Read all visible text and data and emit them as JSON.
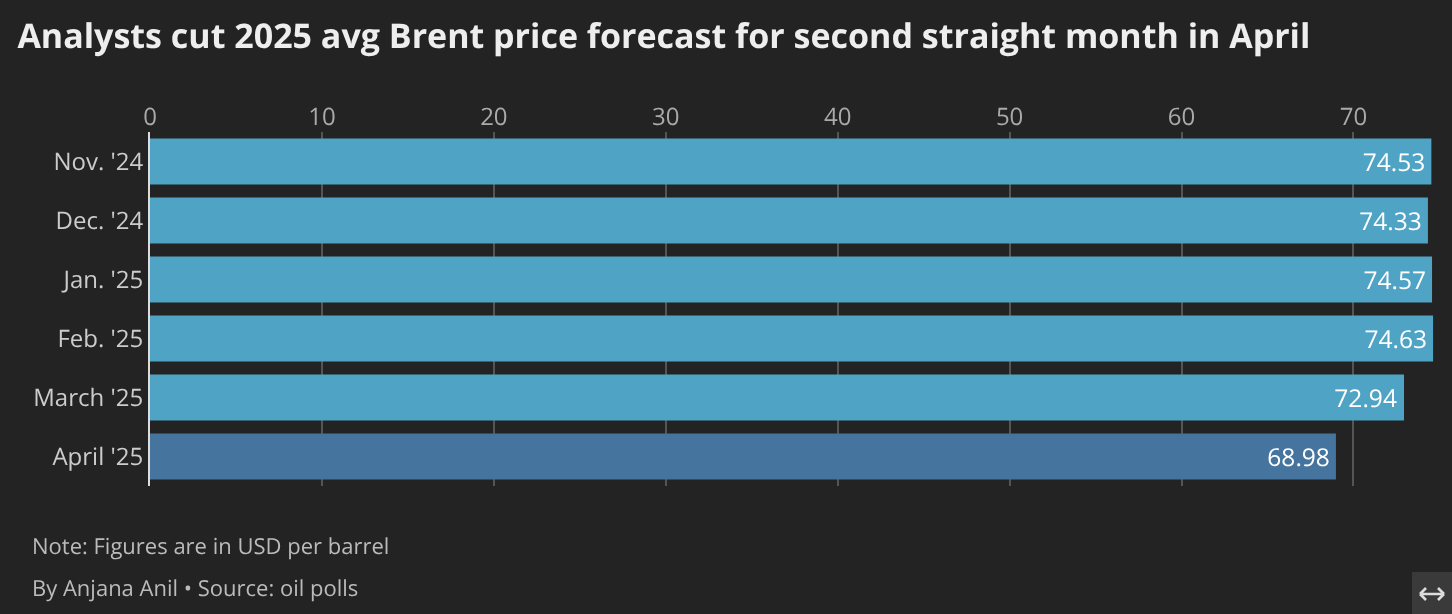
{
  "chart_data": {
    "type": "bar",
    "orientation": "horizontal",
    "title": "Analysts cut 2025 avg Brent price forecast for second straight month in April",
    "categories": [
      "Nov. '24",
      "Dec. '24",
      "Jan. '25",
      "Feb. '25",
      "March '25",
      "April '25"
    ],
    "values": [
      74.53,
      74.33,
      74.57,
      74.63,
      72.94,
      68.98
    ],
    "colors": [
      "#4fa3c4",
      "#4fa3c4",
      "#4fa3c4",
      "#4fa3c4",
      "#4fa3c4",
      "#45749e"
    ],
    "xlim": [
      0,
      74.8
    ],
    "xticks": [
      0,
      10,
      20,
      30,
      40,
      50,
      60,
      70
    ],
    "grid": "x",
    "data_labels": true,
    "annotations": [
      "Note: Figures are in USD per barrel",
      "By Anjana Anil • Source: oil polls"
    ]
  }
}
